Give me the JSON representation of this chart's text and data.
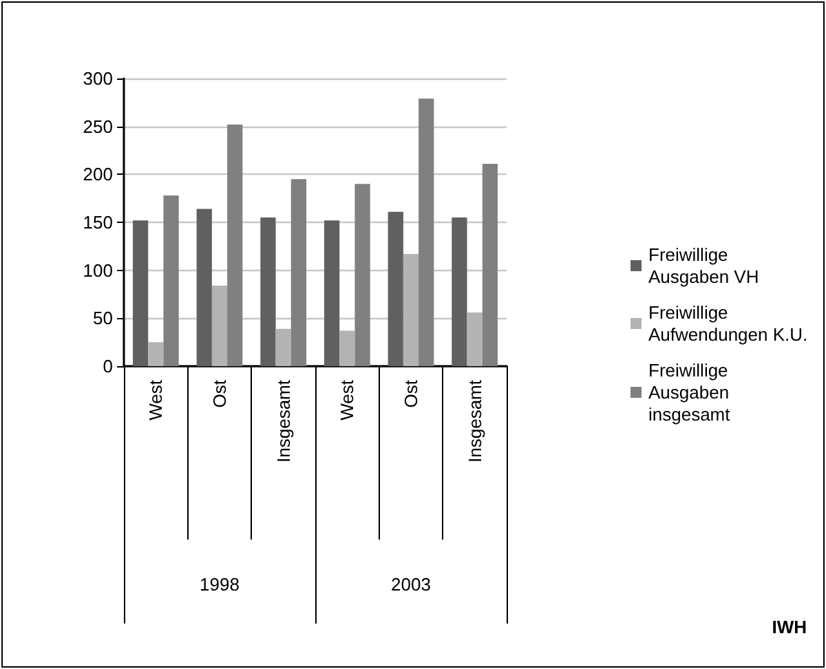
{
  "chart_data": {
    "type": "bar",
    "categories": [
      "West",
      "Ost",
      "Insgesamt",
      "West",
      "Ost",
      "Insgesamt"
    ],
    "series": [
      {
        "name": "Freiwillige Ausgaben VH",
        "color": "#606060",
        "values": [
          152,
          164,
          155,
          152,
          161,
          155
        ]
      },
      {
        "name": "Freiwillige Aufwendungen K.U.",
        "color": "#b3b3b3",
        "values": [
          25,
          84,
          39,
          37,
          117,
          56
        ]
      },
      {
        "name": "Freiwillige Ausgaben insgesamt",
        "color": "#808080",
        "values": [
          178,
          252,
          195,
          190,
          279,
          211
        ]
      }
    ],
    "annotations": [
      "1998",
      "2003",
      "IWH"
    ],
    "ylim": [
      0,
      300
    ],
    "yticks": [
      0,
      50,
      100,
      150,
      200,
      250,
      300
    ],
    "grid": "y",
    "legend": "right"
  }
}
